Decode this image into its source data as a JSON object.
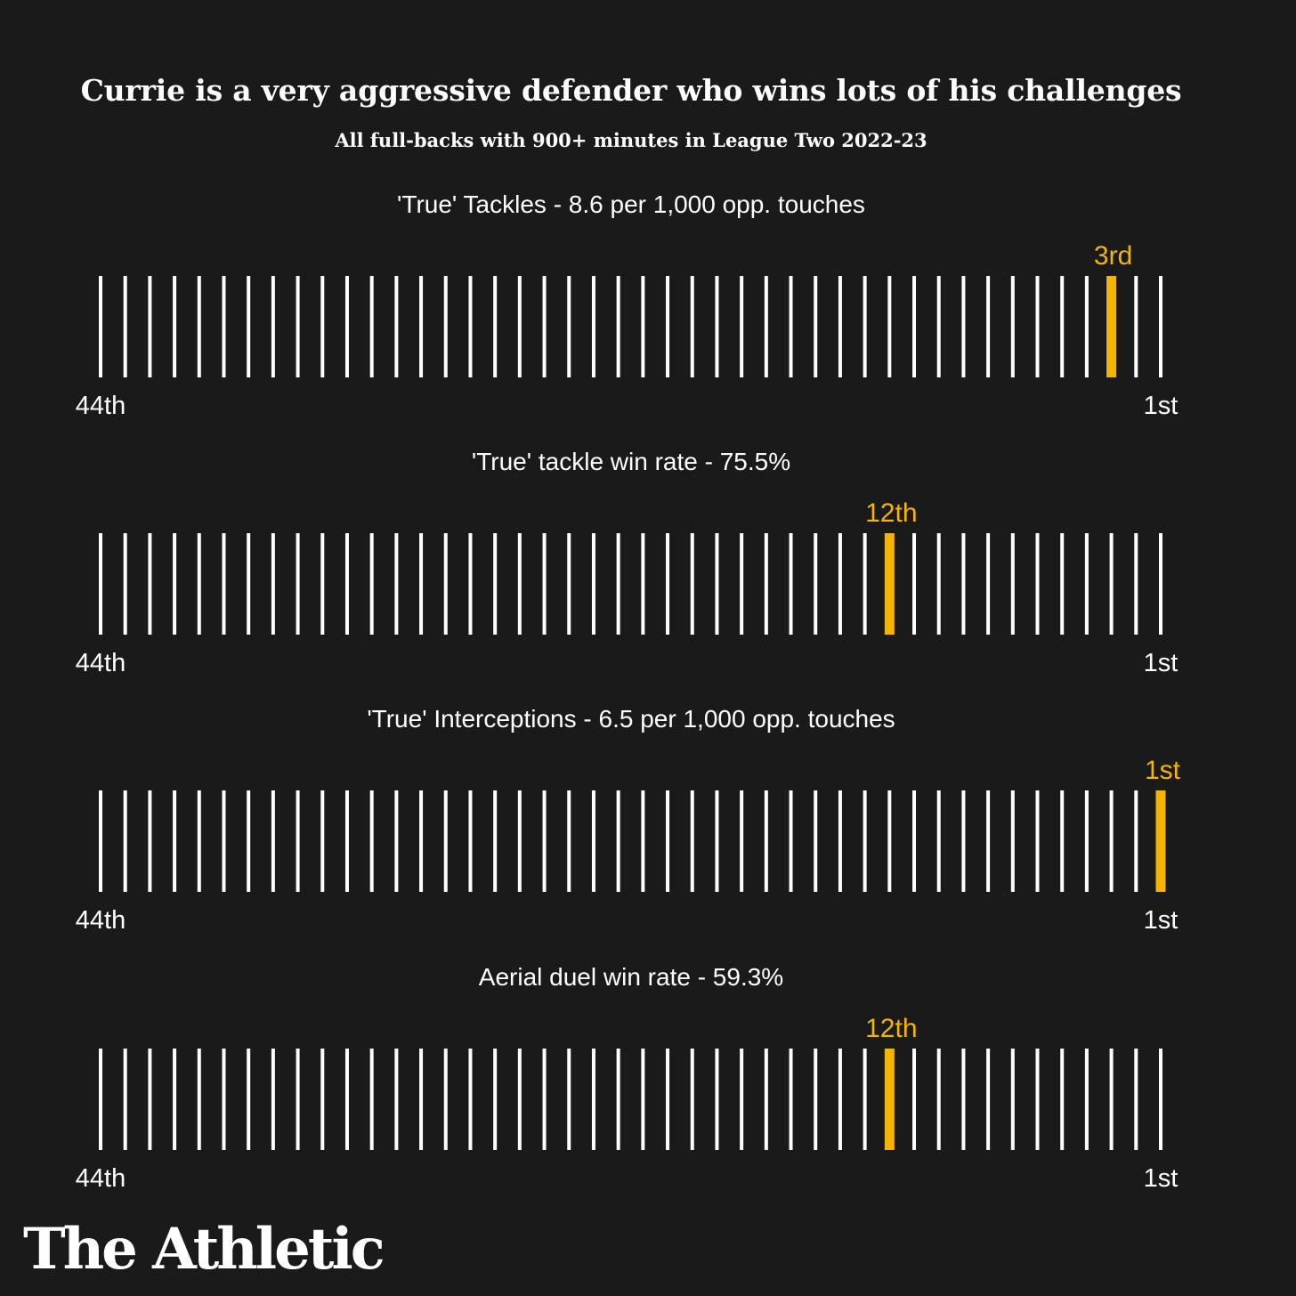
{
  "title": "Currie is a very aggressive defender who wins lots of his challenges",
  "subtitle": "All full-backs with 900+ minutes in League Two 2022-23",
  "brand": "The Athletic",
  "colors": {
    "background": "#1a1a1a",
    "tick": "#ffffff",
    "highlight": "#f5b400"
  },
  "chart_data": [
    {
      "type": "rank-strip",
      "title": "'True' Tackles - 8.6 per 1,000 opp. touches",
      "total": 44,
      "rank": 3,
      "rank_label": "3rd",
      "worst_label": "44th",
      "best_label": "1st"
    },
    {
      "type": "rank-strip",
      "title": "'True' tackle win rate - 75.5%",
      "total": 44,
      "rank": 12,
      "rank_label": "12th",
      "worst_label": "44th",
      "best_label": "1st"
    },
    {
      "type": "rank-strip",
      "title": "'True' Interceptions - 6.5 per 1,000 opp. touches",
      "total": 44,
      "rank": 1,
      "rank_label": "1st",
      "worst_label": "44th",
      "best_label": "1st"
    },
    {
      "type": "rank-strip",
      "title": "Aerial duel win rate - 59.3%",
      "total": 44,
      "rank": 12,
      "rank_label": "12th",
      "worst_label": "44th",
      "best_label": "1st"
    }
  ]
}
